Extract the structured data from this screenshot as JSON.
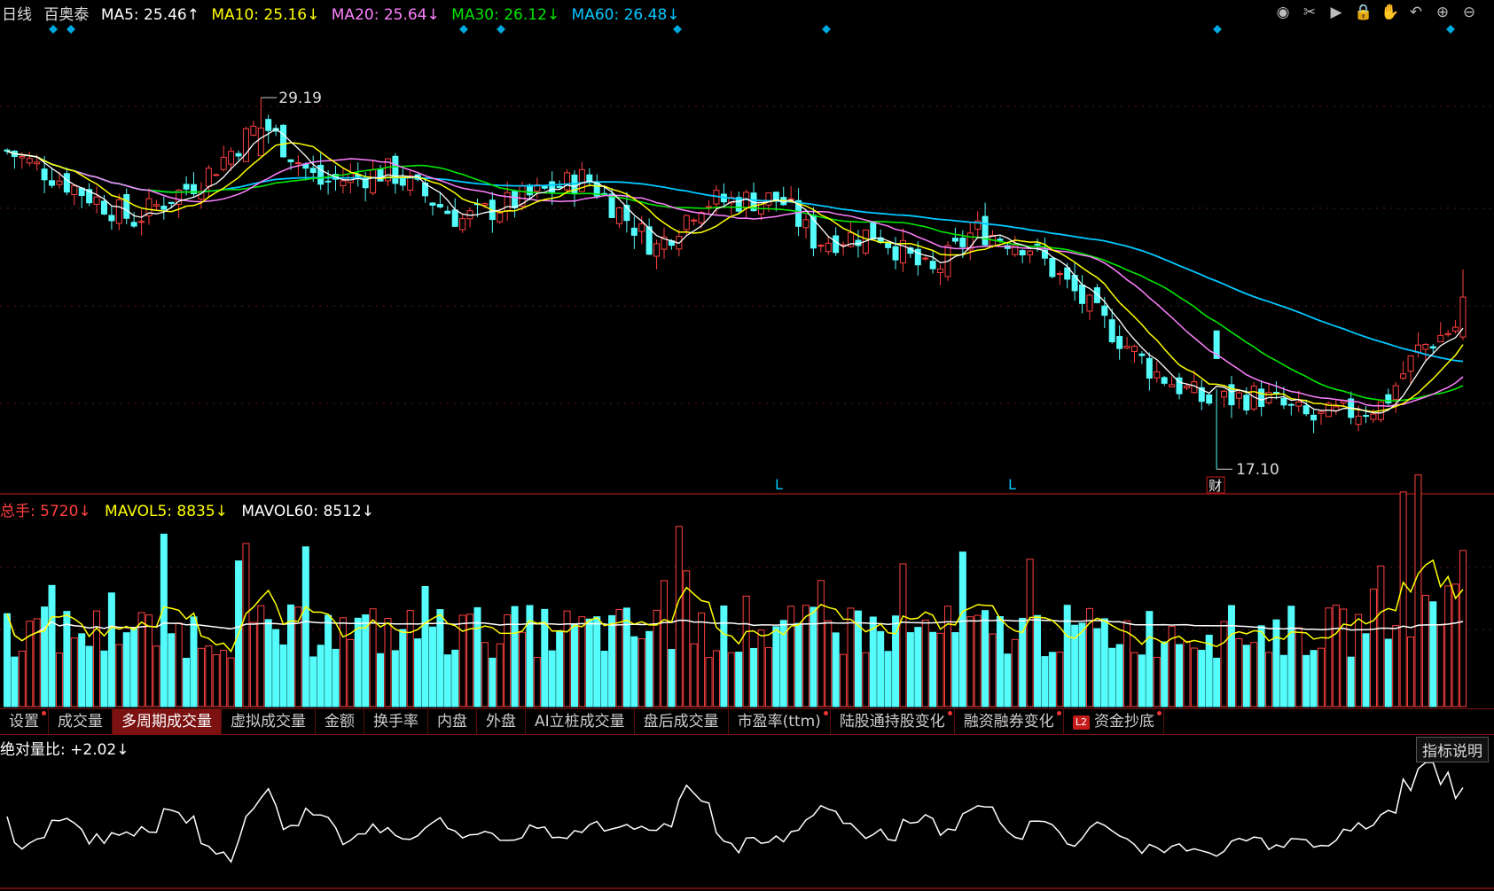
{
  "header": {
    "period": "日线",
    "stock": "百奥泰",
    "ma5": "MA5: 25.46↑",
    "ma10": "MA10: 25.16↓",
    "ma20": "MA20: 25.64↓",
    "ma30": "MA30: 26.12↓",
    "ma60": "MA60: 26.48↓"
  },
  "toolbar_icons": [
    "eye-icon",
    "scissors-icon",
    "play-icon",
    "lock-icon",
    "hand-icon",
    "undo-icon",
    "zoom-in-icon",
    "zoom-out-icon"
  ],
  "price_chart": {
    "high_label": "29.19",
    "low_label": "17.10",
    "event_marker": "财",
    "l_markers": [
      "L",
      "L"
    ],
    "y_range": [
      16.5,
      31.5
    ],
    "colors": {
      "up": "#ff4040",
      "down": "#54fcfc",
      "ma5": "#ffffff",
      "ma10": "#ffff00",
      "ma20": "#ff80ff",
      "ma30": "#00e600",
      "ma60": "#00c8ff"
    }
  },
  "volume": {
    "total": "总手: 5720↓",
    "mavol5": "MAVOL5: 8835↓",
    "mavol60": "MAVOL60: 8512↓"
  },
  "tabs": [
    {
      "label": "设置",
      "dot": true
    },
    {
      "label": "成交量",
      "dot": false
    },
    {
      "label": "多周期成交量",
      "dot": false,
      "active": true
    },
    {
      "label": "虚拟成交量",
      "dot": false
    },
    {
      "label": "金额",
      "dot": false
    },
    {
      "label": "换手率",
      "dot": false
    },
    {
      "label": "内盘",
      "dot": false
    },
    {
      "label": "外盘",
      "dot": false
    },
    {
      "label": "AI立桩成交量",
      "dot": false
    },
    {
      "label": "盘后成交量",
      "dot": false
    },
    {
      "label": "市盈率(ttm)",
      "dot": true
    },
    {
      "label": "陆股通持股变化",
      "dot": true
    },
    {
      "label": "融资融券变化",
      "dot": true
    },
    {
      "label": "资金抄底",
      "dot": true,
      "badge": "L2"
    }
  ],
  "indicator": {
    "label": "绝对量比: +2.02↓",
    "explain": "指标说明"
  },
  "chart_data": {
    "type": "candlestick",
    "y_high": 29.19,
    "y_low": 17.1,
    "ma_latest": {
      "MA5": 25.46,
      "MA10": 25.16,
      "MA20": 25.64,
      "MA30": 26.12,
      "MA60": 26.48
    },
    "volume_latest": {
      "total": 5720,
      "MAVOL5": 8835,
      "MAVOL60": 8512
    },
    "ratio_latest": 2.02
  }
}
